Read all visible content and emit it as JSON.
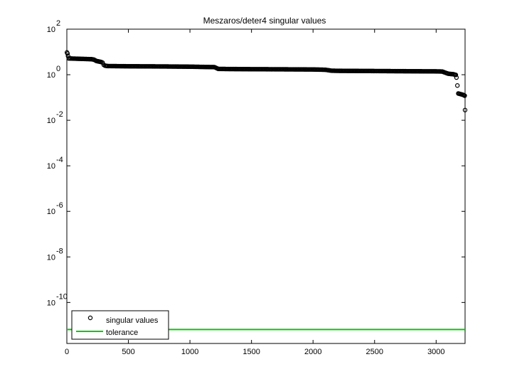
{
  "chart_data": {
    "type": "scatter",
    "title": "Meszaros/deter4 singular values",
    "xlabel": "",
    "ylabel": "",
    "xlim": [
      0,
      3235
    ],
    "ylim_log10": [
      -11.8,
      2
    ],
    "y_scale": "log",
    "grid": false,
    "legend_position": "bottom-left",
    "x_ticks": [
      {
        "value": 0,
        "label": "0"
      },
      {
        "value": 500,
        "label": "500"
      },
      {
        "value": 1000,
        "label": "1000"
      },
      {
        "value": 1500,
        "label": "1500"
      },
      {
        "value": 2000,
        "label": "2000"
      },
      {
        "value": 2500,
        "label": "2500"
      },
      {
        "value": 3000,
        "label": "3000"
      }
    ],
    "y_ticks": [
      {
        "value": 2,
        "base": "10",
        "exp": "2"
      },
      {
        "value": 0,
        "base": "10",
        "exp": "0"
      },
      {
        "value": -2,
        "base": "10",
        "exp": "-2"
      },
      {
        "value": -4,
        "base": "10",
        "exp": "-4"
      },
      {
        "value": -6,
        "base": "10",
        "exp": "-6"
      },
      {
        "value": -8,
        "base": "10",
        "exp": "-8"
      },
      {
        "value": -10,
        "base": "10",
        "exp": "-10"
      }
    ],
    "series": [
      {
        "name": "singular values",
        "marker": "circle",
        "color": "#000000",
        "points": [
          [
            1,
            9.5
          ],
          [
            5,
            8.5
          ],
          [
            10,
            6.5
          ],
          [
            15,
            5.2
          ],
          [
            50,
            5.1
          ],
          [
            100,
            5.0
          ],
          [
            150,
            4.9
          ],
          [
            200,
            4.8
          ],
          [
            220,
            4.6
          ],
          [
            240,
            4.0
          ],
          [
            260,
            3.8
          ],
          [
            280,
            3.6
          ],
          [
            290,
            3.4
          ],
          [
            300,
            2.7
          ],
          [
            310,
            2.5
          ],
          [
            330,
            2.4
          ],
          [
            500,
            2.35
          ],
          [
            800,
            2.3
          ],
          [
            1000,
            2.25
          ],
          [
            1200,
            2.15
          ],
          [
            1230,
            1.8
          ],
          [
            1300,
            1.78
          ],
          [
            1500,
            1.75
          ],
          [
            1800,
            1.72
          ],
          [
            2000,
            1.7
          ],
          [
            2100,
            1.65
          ],
          [
            2150,
            1.5
          ],
          [
            2200,
            1.48
          ],
          [
            2500,
            1.45
          ],
          [
            2800,
            1.42
          ],
          [
            3000,
            1.4
          ],
          [
            3050,
            1.38
          ],
          [
            3080,
            1.2
          ],
          [
            3100,
            1.1
          ],
          [
            3140,
            1.05
          ],
          [
            3160,
            0.98
          ],
          [
            3165,
            0.75
          ],
          [
            3180,
            0.15
          ],
          [
            3200,
            0.14
          ],
          [
            3220,
            0.13
          ],
          [
            3232,
            0.12
          ],
          [
            3235,
            0.028
          ]
        ]
      },
      {
        "name": "tolerance",
        "line": true,
        "color": "#00cc00",
        "y": 6.5e-12
      }
    ]
  }
}
